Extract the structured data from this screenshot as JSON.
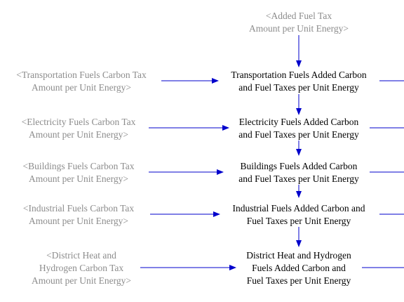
{
  "colors": {
    "arrow": "#0000cc",
    "shadow_text": "#8c8c8c",
    "variable_text": "#000000"
  },
  "shadow_vars": {
    "added_fuel_tax": [
      "<Added Fuel Tax",
      "Amount per Unit Energy>"
    ],
    "transport_carbon": [
      "<Transportation Fuels Carbon Tax",
      "Amount per Unit Energy>"
    ],
    "electricity_carbon": [
      "<Electricity Fuels Carbon Tax",
      "Amount per Unit Energy>"
    ],
    "buildings_carbon": [
      "<Buildings Fuels Carbon Tax",
      "Amount per Unit Energy>"
    ],
    "industrial_carbon": [
      "<Industrial Fuels Carbon Tax",
      "Amount per Unit Energy>"
    ],
    "district_carbon": [
      "<District Heat and",
      "Hydrogen Carbon Tax",
      "Amount per Unit Energy>"
    ]
  },
  "variables": {
    "transport_total": [
      "Transportation Fuels Added Carbon",
      "and Fuel Taxes per Unit Energy"
    ],
    "electricity_total": [
      "Electricity Fuels Added Carbon",
      "and Fuel Taxes per Unit Energy"
    ],
    "buildings_total": [
      "Buildings Fuels Added Carbon",
      "and Fuel Taxes per Unit Energy"
    ],
    "industrial_total": [
      "Industrial Fuels Added Carbon and",
      "Fuel Taxes per Unit Energy"
    ],
    "district_total": [
      "District Heat and Hydrogen",
      "Fuels Added Carbon and",
      "Fuel Taxes per Unit Energy"
    ]
  }
}
